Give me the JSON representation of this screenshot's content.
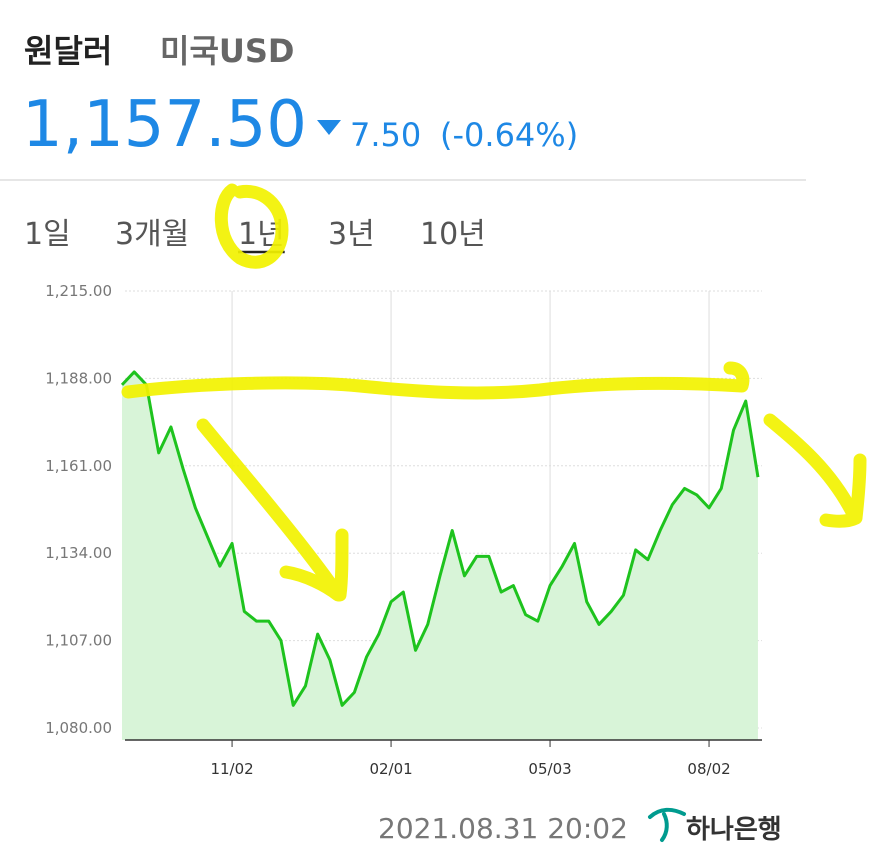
{
  "header": {
    "title": "원달러",
    "subtitle": "미국USD",
    "price": "1,157.50",
    "change": "7.50",
    "change_percent": "(-0.64%)"
  },
  "tabs": [
    "1일",
    "3개월",
    "1년",
    "3년",
    "10년"
  ],
  "selected_tab": 2,
  "chart_data": {
    "type": "area",
    "categories": [
      null,
      null,
      null,
      null,
      null,
      null,
      null,
      null,
      null,
      "11/02",
      null,
      null,
      null,
      null,
      null,
      null,
      null,
      null,
      null,
      null,
      null,
      null,
      "02/01",
      null,
      null,
      null,
      null,
      null,
      null,
      null,
      null,
      null,
      null,
      null,
      null,
      "05/03",
      null,
      null,
      null,
      null,
      null,
      null,
      null,
      null,
      null,
      null,
      null,
      null,
      "08/02",
      null,
      null,
      null,
      null
    ],
    "values": [
      1186,
      1190,
      1186,
      1165,
      1173,
      1160,
      1148,
      1139,
      1130,
      1137,
      1116,
      1113,
      1113,
      1107,
      1087,
      1093,
      1109,
      1101,
      1087,
      1091,
      1102,
      1109,
      1119,
      1122,
      1104,
      1112,
      1127,
      1141,
      1127,
      1133,
      1133,
      1122,
      1124,
      1115,
      1113,
      1124,
      1130,
      1137,
      1119,
      1112,
      1116,
      1121,
      1135,
      1132,
      1141,
      1149,
      1154,
      1152,
      1148,
      1154,
      1172,
      1181,
      1157.5
    ],
    "color": "#1ec31e",
    "fill": "#d8f4d8",
    "ylim": [
      1075,
      1215
    ],
    "yticks": [
      {
        "value": 1080,
        "label": "1,080.00"
      },
      {
        "value": 1107,
        "label": "1,107.00"
      },
      {
        "value": 1134,
        "label": "1,134.00"
      },
      {
        "value": 1161,
        "label": "1,161.00"
      },
      {
        "value": 1188,
        "label": "1,188.00"
      },
      {
        "value": 1215,
        "label": "1,215.00"
      }
    ],
    "grid": true
  },
  "footer": {
    "timestamp": "2021.08.31 20:02",
    "bank": "하나은행"
  }
}
